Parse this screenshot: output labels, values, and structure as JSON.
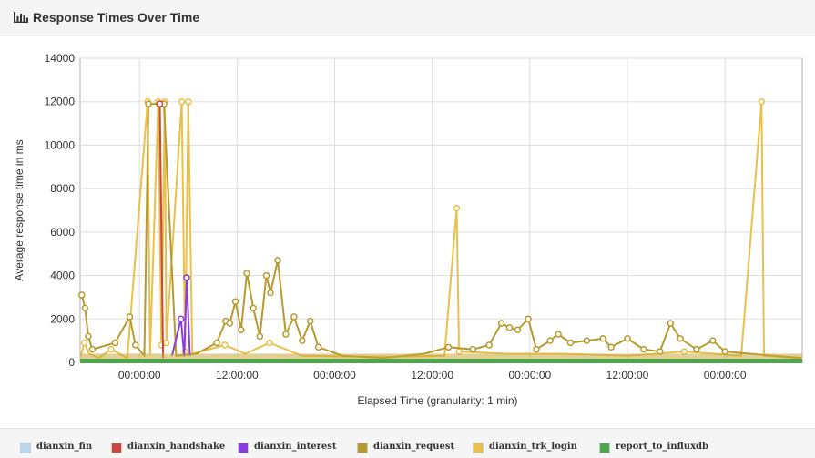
{
  "header": {
    "title": "Response Times Over Time",
    "icon": "bar-chart-icon"
  },
  "legend": [
    {
      "label": "dianxin_fin",
      "color": "#b7d7f0"
    },
    {
      "label": "dianxin_handshake",
      "color": "#c9473f"
    },
    {
      "label": "dianxin_interest",
      "color": "#8a3ce0"
    },
    {
      "label": "dianxin_request",
      "color": "#b79a2e"
    },
    {
      "label": "dianxin_trk_login",
      "color": "#e8c04a"
    },
    {
      "label": "report_to_influxdb",
      "color": "#4aa84a"
    }
  ],
  "chart_data": {
    "type": "line",
    "title": "",
    "xlabel": "Elapsed Time (granularity: 1 min)",
    "ylabel": "Average response time in ms",
    "ylim": [
      0,
      14000
    ],
    "yticks": [
      0,
      2000,
      4000,
      6000,
      8000,
      10000,
      12000,
      14000
    ],
    "xlim_hours": [
      -7.3,
      81.5
    ],
    "xticks": [
      {
        "hours": 0,
        "label": "00:00:00"
      },
      {
        "hours": 12,
        "label": "12:00:00"
      },
      {
        "hours": 24,
        "label": "00:00:00"
      },
      {
        "hours": 36,
        "label": "12:00:00"
      },
      {
        "hours": 48,
        "label": "00:00:00"
      },
      {
        "hours": 60,
        "label": "12:00:00"
      },
      {
        "hours": 72,
        "label": "00:00:00"
      }
    ],
    "grid": true,
    "legend_position": "bottom",
    "series": [
      {
        "name": "dianxin_trk_login",
        "color": "#e8c04a",
        "points": [
          [
            -7.2,
            300
          ],
          [
            -6.8,
            900
          ],
          [
            -6.2,
            400
          ],
          [
            -5.0,
            200
          ],
          [
            -3.5,
            600
          ],
          [
            -1.5,
            200
          ],
          [
            1.0,
            12000
          ],
          [
            1.3,
            400
          ],
          [
            2.3,
            12000
          ],
          [
            2.7,
            800
          ],
          [
            3.1,
            12000
          ],
          [
            3.3,
            900
          ],
          [
            5.2,
            12000
          ],
          [
            5.6,
            500
          ],
          [
            6.0,
            12000
          ],
          [
            6.5,
            400
          ],
          [
            10.5,
            800
          ],
          [
            13.0,
            400
          ],
          [
            16.0,
            900
          ],
          [
            20.0,
            300
          ],
          [
            30.0,
            250
          ],
          [
            37.5,
            300
          ],
          [
            39.0,
            7100
          ],
          [
            39.3,
            500
          ],
          [
            45.0,
            400
          ],
          [
            52.0,
            400
          ],
          [
            60.0,
            300
          ],
          [
            67.0,
            500
          ],
          [
            74.0,
            300
          ],
          [
            76.5,
            12000
          ],
          [
            76.8,
            300
          ],
          [
            81.4,
            200
          ]
        ]
      },
      {
        "name": "dianxin_request",
        "color": "#b79a2e",
        "points": [
          [
            -7.1,
            3100
          ],
          [
            -6.7,
            2500
          ],
          [
            -6.3,
            1200
          ],
          [
            -5.8,
            600
          ],
          [
            -3.0,
            900
          ],
          [
            -1.2,
            2100
          ],
          [
            -0.5,
            800
          ],
          [
            0.6,
            300
          ],
          [
            1.1,
            11900
          ],
          [
            2.4,
            11900
          ],
          [
            3.0,
            11900
          ],
          [
            4.5,
            300
          ],
          [
            7.0,
            400
          ],
          [
            9.5,
            900
          ],
          [
            10.6,
            1900
          ],
          [
            11.1,
            1800
          ],
          [
            11.8,
            2800
          ],
          [
            12.5,
            1500
          ],
          [
            13.2,
            4100
          ],
          [
            14.0,
            2500
          ],
          [
            14.8,
            1200
          ],
          [
            15.6,
            4000
          ],
          [
            16.1,
            3200
          ],
          [
            17.0,
            4700
          ],
          [
            18.0,
            1300
          ],
          [
            19.0,
            2100
          ],
          [
            20.0,
            1000
          ],
          [
            21.0,
            1900
          ],
          [
            22.0,
            700
          ],
          [
            25.0,
            300
          ],
          [
            30.0,
            200
          ],
          [
            35.0,
            400
          ],
          [
            38.0,
            700
          ],
          [
            41.0,
            600
          ],
          [
            43.0,
            800
          ],
          [
            44.5,
            1800
          ],
          [
            45.5,
            1600
          ],
          [
            46.5,
            1500
          ],
          [
            47.8,
            2000
          ],
          [
            48.8,
            600
          ],
          [
            50.5,
            1000
          ],
          [
            51.5,
            1300
          ],
          [
            53.0,
            900
          ],
          [
            55.0,
            1000
          ],
          [
            57.0,
            1100
          ],
          [
            58.0,
            700
          ],
          [
            60.0,
            1100
          ],
          [
            62.0,
            600
          ],
          [
            64.0,
            500
          ],
          [
            65.3,
            1800
          ],
          [
            66.5,
            1100
          ],
          [
            68.5,
            600
          ],
          [
            70.5,
            1000
          ],
          [
            72.0,
            500
          ],
          [
            75.0,
            400
          ],
          [
            78.0,
            300
          ],
          [
            81.4,
            200
          ]
        ]
      },
      {
        "name": "dianxin_interest",
        "color": "#8a3ce0",
        "points": [
          [
            4.0,
            300
          ],
          [
            5.1,
            2000
          ],
          [
            5.5,
            300
          ],
          [
            5.8,
            3900
          ],
          [
            6.2,
            300
          ]
        ]
      },
      {
        "name": "dianxin_handshake",
        "color": "#c9473f",
        "points": [
          [
            2.5,
            11900
          ],
          [
            2.9,
            200
          ]
        ]
      },
      {
        "name": "report_to_influxdb",
        "color": "#4aa84a",
        "points": [
          [
            -7.3,
            0
          ],
          [
            81.5,
            0
          ]
        ]
      }
    ]
  }
}
